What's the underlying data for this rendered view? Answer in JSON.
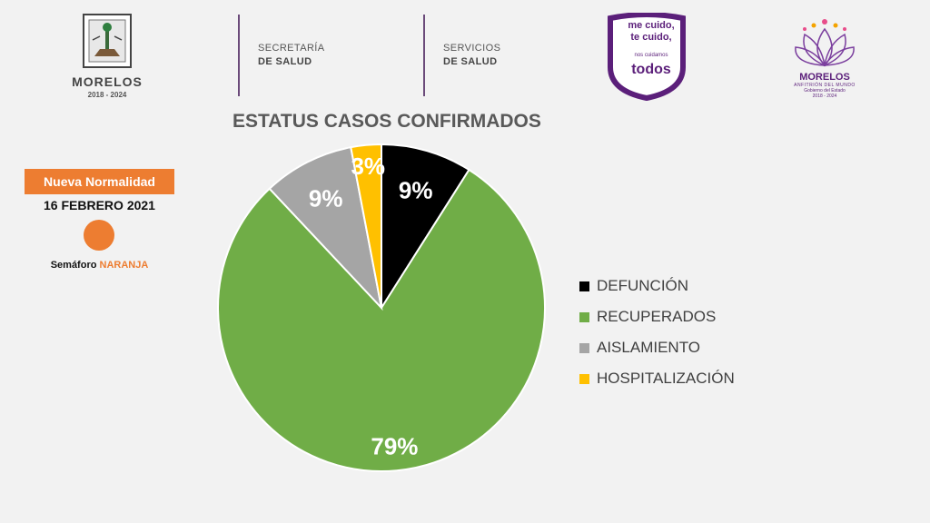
{
  "header": {
    "morelos_logo": {
      "name": "MORELOS",
      "years": "2018 - 2024"
    },
    "dept1": {
      "line1": "SECRETARÍA",
      "line2": "DE SALUD"
    },
    "dept2": {
      "line1": "SERVICIOS",
      "line2": "DE SALUD"
    },
    "campaign": {
      "line1": "me cuido,",
      "line2": "te cuido,",
      "line3": "nos cuidamos",
      "line4": "todos"
    },
    "gov_logo": {
      "name": "MORELOS",
      "tagline": "ANFITRIÓN DEL MUNDO",
      "sub": "Gobierno del Estado",
      "years": "2018 - 2024"
    }
  },
  "sidebar": {
    "badge": "Nueva Normalidad",
    "date": "16 FEBRERO 2021",
    "semaforo_label": "Semáforo",
    "semaforo_color": "NARANJA",
    "dot_color": "#ed7d31"
  },
  "chart_data": {
    "type": "pie",
    "title": "ESTATUS CASOS CONFIRMADOS",
    "start_angle_deg": 0,
    "slices": [
      {
        "label": "DEFUNCIÓN",
        "value": 9,
        "display": "9%",
        "color": "#000000"
      },
      {
        "label": "RECUPERADOS",
        "value": 79,
        "display": "79%",
        "color": "#70ad47"
      },
      {
        "label": "AISLAMIENTO",
        "value": 9,
        "display": "9%",
        "color": "#a5a5a5"
      },
      {
        "label": "HOSPITALIZACIÓN",
        "value": 3,
        "display": "3%",
        "color": "#ffc000"
      }
    ],
    "legend_position": "right"
  }
}
